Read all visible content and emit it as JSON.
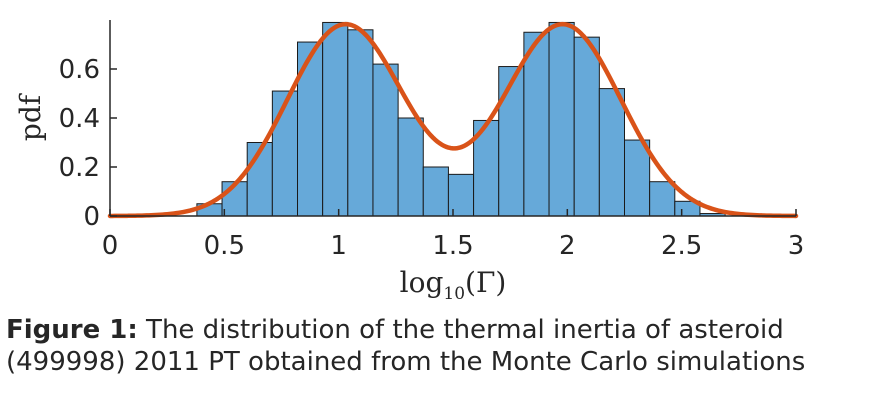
{
  "chart_data": {
    "type": "bar",
    "xlabel_main": "log",
    "xlabel_sub": "10",
    "xlabel_arg": "(Γ)",
    "ylabel": "pdf",
    "xlim": [
      0,
      3
    ],
    "ylim": [
      0,
      0.8
    ],
    "x_ticks": [
      {
        "value": 0,
        "label": "0"
      },
      {
        "value": 0.5,
        "label": "0.5"
      },
      {
        "value": 1,
        "label": "1"
      },
      {
        "value": 1.5,
        "label": "1.5"
      },
      {
        "value": 2,
        "label": "2"
      },
      {
        "value": 2.5,
        "label": "2.5"
      },
      {
        "value": 3,
        "label": "3"
      }
    ],
    "y_ticks": [
      {
        "value": 0,
        "label": "0"
      },
      {
        "value": 0.2,
        "label": "0.2"
      },
      {
        "value": 0.4,
        "label": "0.4"
      },
      {
        "value": 0.6,
        "label": "0.6"
      }
    ],
    "bin_width": 0.11,
    "bins": [
      {
        "x0": 0.38,
        "value": 0.05
      },
      {
        "x0": 0.49,
        "value": 0.14
      },
      {
        "x0": 0.6,
        "value": 0.3
      },
      {
        "x0": 0.71,
        "value": 0.51
      },
      {
        "x0": 0.82,
        "value": 0.71
      },
      {
        "x0": 0.93,
        "value": 0.79
      },
      {
        "x0": 1.04,
        "value": 0.76
      },
      {
        "x0": 1.15,
        "value": 0.62
      },
      {
        "x0": 1.26,
        "value": 0.4
      },
      {
        "x0": 1.37,
        "value": 0.2
      },
      {
        "x0": 1.48,
        "value": 0.17
      },
      {
        "x0": 1.59,
        "value": 0.39
      },
      {
        "x0": 1.7,
        "value": 0.61
      },
      {
        "x0": 1.81,
        "value": 0.75
      },
      {
        "x0": 1.92,
        "value": 0.79
      },
      {
        "x0": 2.03,
        "value": 0.73
      },
      {
        "x0": 2.14,
        "value": 0.52
      },
      {
        "x0": 2.25,
        "value": 0.31
      },
      {
        "x0": 2.36,
        "value": 0.14
      },
      {
        "x0": 2.47,
        "value": 0.06
      },
      {
        "x0": 2.58,
        "value": 0.01
      }
    ],
    "fit_curve": {
      "components": [
        {
          "weight": 0.5,
          "mean": 1.03,
          "sigma": 0.255
        },
        {
          "weight": 0.5,
          "mean": 1.98,
          "sigma": 0.255
        }
      ]
    },
    "colors": {
      "bar_fill": "#66a9d9",
      "bar_edge": "#1a1a1a",
      "curve": "#d95319",
      "axis": "#262626"
    },
    "grid": false,
    "legend": "none"
  },
  "caption": {
    "label": "Figure 1:",
    "text": " The distribution of the thermal inertia of asteroid (499998) 2011 PT obtained from the Monte Carlo simulations"
  }
}
